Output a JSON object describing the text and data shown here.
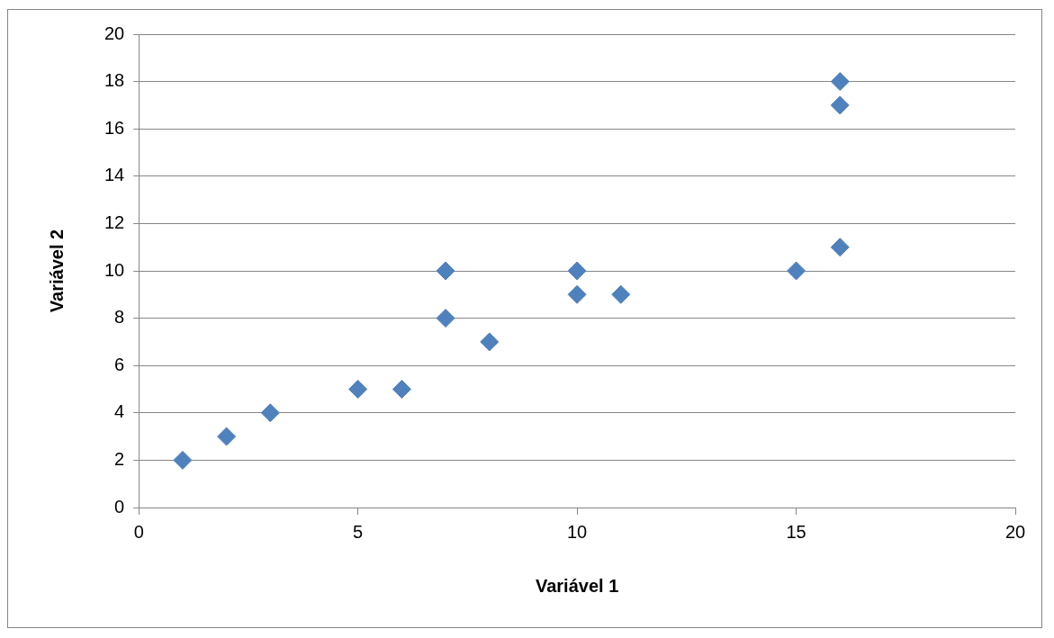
{
  "chart_data": {
    "type": "scatter",
    "xlabel": "Variável 1",
    "ylabel": "Variável 2",
    "series": [
      {
        "color": "#4f81bd",
        "x": [
          1,
          2,
          3,
          5,
          6,
          7,
          7,
          8,
          10,
          10,
          11,
          15,
          16,
          16,
          16
        ],
        "values": [
          2,
          3,
          4,
          5,
          5,
          10,
          8,
          7,
          10,
          9,
          9,
          10,
          18,
          17,
          11
        ]
      }
    ],
    "xlim": [
      0,
      20
    ],
    "xticks": [
      0,
      5,
      10,
      15,
      20
    ],
    "ylim": [
      0,
      20
    ],
    "yticks": [
      0,
      2,
      4,
      6,
      8,
      10,
      12,
      14,
      16,
      18,
      20
    ],
    "grid": "y",
    "legend": false,
    "marker": "diamond"
  }
}
